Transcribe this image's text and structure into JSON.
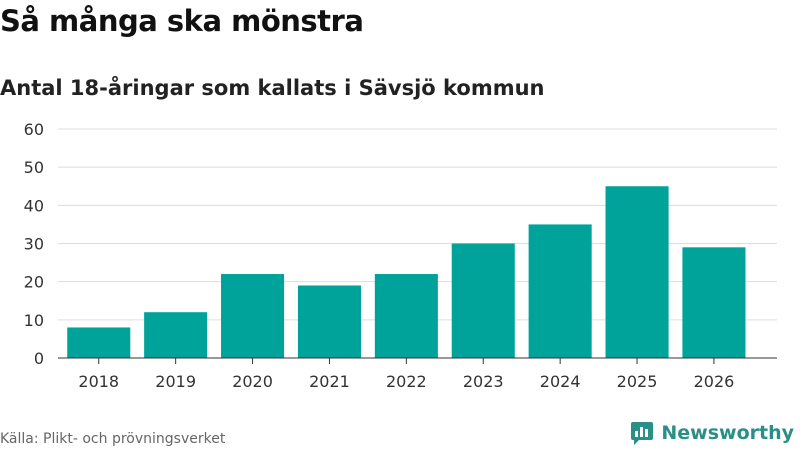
{
  "title": "Så många ska mönstra",
  "subtitle": "Antal 18-åringar som kallats i Sävsjö kommun",
  "source": "Källa: Plikt- och prövningsverket",
  "brand": {
    "name": "Newsworthy",
    "icon": "newsworthy-logo-icon",
    "color": "#2a8f86"
  },
  "chart_data": {
    "type": "bar",
    "title": "Så många ska mönstra",
    "subtitle": "Antal 18-åringar som kallats i Sävsjö kommun",
    "xlabel": "",
    "ylabel": "",
    "categories": [
      "2018",
      "2019",
      "2020",
      "2021",
      "2022",
      "2023",
      "2024",
      "2025",
      "2026"
    ],
    "values": [
      8,
      12,
      22,
      19,
      22,
      30,
      35,
      45,
      29
    ],
    "ylim": [
      0,
      60
    ],
    "yticks": [
      0,
      10,
      20,
      30,
      40,
      50,
      60
    ],
    "grid": true,
    "bar_color": "#00a39a"
  }
}
